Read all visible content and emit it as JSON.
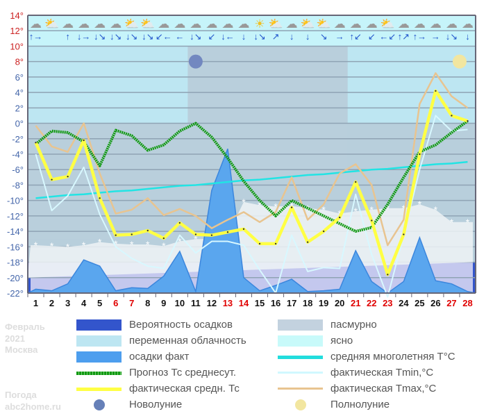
{
  "chart_data": {
    "type": "line",
    "title": "Февраль 2021 Москва",
    "ylim": [
      -22,
      14
    ],
    "yticks": [
      "14°",
      "12°",
      "10°",
      "8°",
      "6°",
      "4°",
      "2°",
      "0°",
      "-2°",
      "-4°",
      "-6°",
      "-8°",
      "-10°",
      "-12°",
      "-14°",
      "-16°",
      "-18°",
      "-20°",
      "-22°"
    ],
    "days": [
      "1",
      "2",
      "3",
      "4",
      "5",
      "6",
      "7",
      "8",
      "9",
      "10",
      "11",
      "12",
      "13",
      "14",
      "15",
      "16",
      "17",
      "18",
      "19",
      "20",
      "21",
      "22",
      "23",
      "24",
      "25",
      "26",
      "27",
      "28"
    ],
    "weekend_days": [
      "6",
      "7",
      "13",
      "14",
      "21",
      "22",
      "23",
      "27",
      "28"
    ],
    "weekend_color": "#e00000",
    "series": [
      {
        "name": "Прогноз Тс среднесут.",
        "color": "#119911",
        "values": [
          -2.7,
          -1,
          -1.2,
          -2.4,
          -5.5,
          -0.9,
          -1.6,
          -3.5,
          -2.8,
          -1,
          0,
          -1.8,
          -4.5,
          -7.5,
          -10,
          -12,
          -10,
          -11,
          -12,
          -13,
          -14,
          -13.5,
          -10.5,
          -7,
          -3.7,
          -2.8,
          -1.2,
          0.3
        ]
      },
      {
        "name": "фактическая средн. Тс",
        "color": "#ffff44",
        "values": [
          -2.5,
          -7.3,
          -6.9,
          -2.2,
          -9.7,
          -14.5,
          -14.4,
          -13.9,
          -14.9,
          -12.9,
          -14.4,
          -14.5,
          -14.1,
          -13.7,
          -15.6,
          -15.6,
          -10.9,
          -15.4,
          -14,
          -12.2,
          -7.6,
          -12.6,
          -19.6,
          -14.4,
          -4,
          4.2,
          1,
          0.3
        ]
      },
      {
        "name": "фактическая Tmax,°C",
        "color": "#e8c490",
        "values": [
          -0.3,
          -3,
          -3.7,
          0,
          -6.5,
          -11.7,
          -11.2,
          -9.7,
          -11.9,
          -11.1,
          -12,
          -13.6,
          -12.5,
          -11.5,
          -12.8,
          -11.5,
          -7,
          -12.5,
          -10.5,
          -6.5,
          -5.3,
          -8,
          -15.8,
          -12.5,
          2.5,
          6.5,
          3.5,
          2
        ]
      },
      {
        "name": "фактическая Tmin,°C",
        "color": "#d8f8ff",
        "values": [
          -4,
          -11.3,
          -9.4,
          -5.7,
          -11.8,
          -16,
          -17.5,
          -18.5,
          -18.8,
          -14.5,
          -16.8,
          -15.3,
          -15.3,
          -15.8,
          -19,
          -22,
          -14.5,
          -19.2,
          -18.7,
          -18.8,
          -9.2,
          -17,
          -22.5,
          -14.5,
          -6,
          1,
          -1,
          -0.8
        ]
      },
      {
        "name": "средняя многолетняя T°C",
        "color": "#22e4e4",
        "values": [
          -9.7,
          -9.5,
          -9.3,
          -9.2,
          -9,
          -8.8,
          -8.7,
          -8.5,
          -8.3,
          -8.1,
          -8,
          -7.8,
          -7.6,
          -7.4,
          -7.3,
          -7.1,
          -6.9,
          -6.7,
          -6.6,
          -6.4,
          -6.2,
          -6,
          -5.9,
          -5.7,
          -5.5,
          -5.3,
          -5.2,
          -5
        ]
      },
      {
        "name": "осадки факт",
        "color": "#5aa6ee",
        "values": [
          -21.5,
          -21.7,
          -20.8,
          -17.7,
          -18.5,
          -21.7,
          -21.3,
          -21.4,
          -19.8,
          -16.6,
          -21.8,
          -8.7,
          -3.3,
          -20,
          -21.7,
          -21,
          -20.2,
          -21.8,
          -21.7,
          -21.5,
          -16.5,
          -20.5,
          -22,
          -20.5,
          -14.8,
          -20.4,
          -20.8,
          -21.8
        ]
      },
      {
        "name": "snow",
        "color": "#eef3f6",
        "values": [
          -15.8,
          -15.9,
          -16,
          -15.8,
          -15.4,
          -15.6,
          -15.7,
          -15.7,
          -15.9,
          -15.3,
          -15,
          -15,
          -14.5,
          -10.2,
          -10.6,
          -10.8,
          -10.7,
          -11,
          -11.2,
          -11.7,
          -11.4,
          -11.2,
          -11,
          -11,
          -10.5,
          -11.2,
          -12.8,
          -12.8
        ]
      }
    ],
    "moon_new_day": 11,
    "moon_full_day": 27.5
  },
  "weather_icons": [
    "☁",
    "⛅",
    "☁",
    "☁",
    "☁",
    "☁",
    "⛅",
    "⛅",
    "☁",
    "☁",
    "☁",
    "☁",
    "☁",
    "☁",
    "☀",
    "⛅",
    "☁",
    "⛅",
    "⛅",
    "☁",
    "☁",
    "☁",
    "⛅",
    "☁",
    "☁",
    "☁",
    "☁",
    "☁"
  ],
  "wind_arrows": [
    "↑→",
    "",
    "↑",
    "↓→",
    "↓↘",
    "↓↘",
    "↓↘",
    "↓↘",
    "↙←",
    "←",
    "↓↘",
    "↙",
    "↓←",
    "↓",
    "↓↘",
    "↗",
    "↓",
    "↓",
    "↘",
    "→",
    "↑↙",
    "↙",
    "←↙",
    "↑↗",
    "↑→",
    "→",
    "↓↘",
    "↓"
  ],
  "legend": {
    "month": "Февраль",
    "year": "2021",
    "city": "Москва",
    "site1": "Погода",
    "site2": "abc2home.ru",
    "items": [
      {
        "label": "Вероятность осадков",
        "color": "#3355cc"
      },
      {
        "label": "переменная облачность",
        "color": "#bde6f2"
      },
      {
        "label": "осадки факт",
        "color": "#4d9eee"
      },
      {
        "label": "Прогноз Тс среднесут.",
        "color": "#119911"
      },
      {
        "label": "фактическая средн. Тс",
        "color": "#ffff44"
      },
      {
        "label": "Новолуние",
        "color": "#6680b8"
      },
      {
        "label": "пасмурно",
        "color": "#c3d2df"
      },
      {
        "label": "ясно",
        "color": "#c8fafa"
      },
      {
        "label": "средняя многолетняя T°C",
        "color": "#22dddd"
      },
      {
        "label": "фактическая Tmin,°C",
        "color": "#d0f8ff"
      },
      {
        "label": "фактическая Tmax,°C",
        "color": "#e8c490"
      },
      {
        "label": "Полнолуние",
        "color": "#f2e6a0"
      }
    ]
  }
}
